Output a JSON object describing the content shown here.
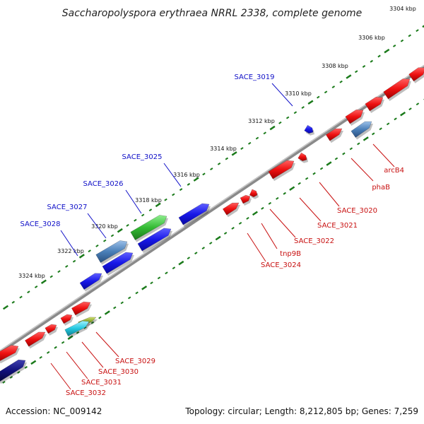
{
  "title": "Saccharopolyspora erythraea NRRL 2338, complete genome",
  "footer": {
    "accession": "Accession: NC_009142",
    "summary": "Topology: circular; Length: 8,212,805 bp; Genes: 7,259"
  },
  "kbp_labels": [
    "3304 kbp",
    "3306 kbp",
    "3308 kbp",
    "3310 kbp",
    "3312 kbp",
    "3314 kbp",
    "3316 kbp",
    "3318 kbp",
    "3320 kbp",
    "3322 kbp",
    "3324 kbp"
  ],
  "upper_genes": [
    "SACE_3019",
    "SACE_3025",
    "SACE_3026",
    "SACE_3027",
    "SACE_3028"
  ],
  "lower_genes": [
    "arcB4",
    "phaB",
    "SACE_3020",
    "SACE_3021",
    "SACE_3022",
    "tnp9B",
    "SACE_3024",
    "SACE_3029",
    "SACE_3030",
    "SACE_3031",
    "SACE_3032"
  ],
  "colors": {
    "backbone": "#8a8a8a",
    "ticks": "#1a7a1a",
    "gene_red": "#ee1111",
    "gene_blue": "#1818e8",
    "gene_steel": "#4a7fb8",
    "gene_green": "#33bb33",
    "gene_cyan": "#22c8e0",
    "gene_olive": "#7a9a20",
    "gene_navy": "#10107a",
    "label_blue": "#1010c8",
    "label_red": "#c81010"
  }
}
